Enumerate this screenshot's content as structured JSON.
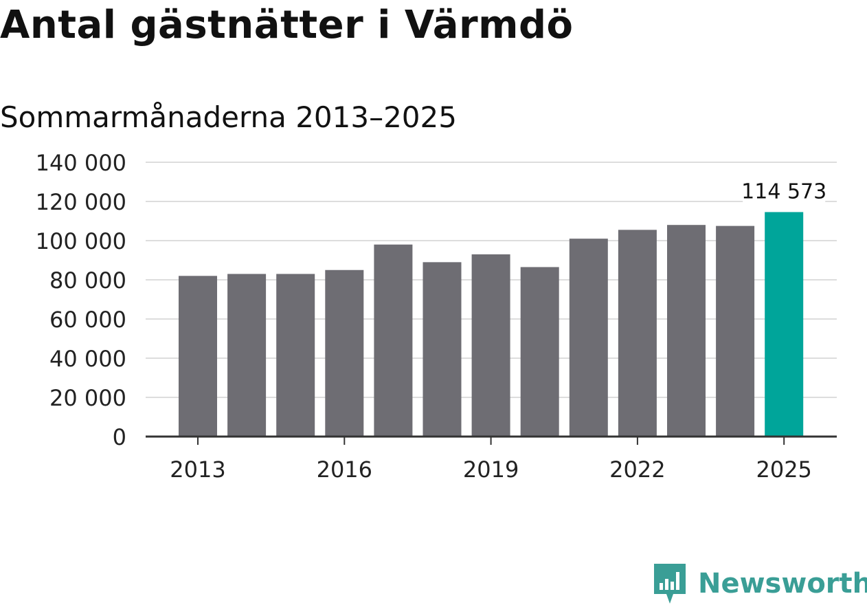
{
  "title": "Antal gästnätter i Värmdö",
  "subtitle": "Sommarmånaderna 2013–2025",
  "brand": {
    "name": "Newsworthy",
    "logo_icon": "newsworthy-logo-icon",
    "color": "#3a9e96"
  },
  "chart_data": {
    "type": "bar",
    "title": "Antal gästnätter i Värmdö",
    "subtitle": "Sommarmånaderna 2013–2025",
    "xlabel": "",
    "ylabel": "",
    "categories": [
      "2013",
      "2014",
      "2015",
      "2016",
      "2017",
      "2018",
      "2019",
      "2020",
      "2021",
      "2022",
      "2023",
      "2024",
      "2025"
    ],
    "values": [
      82000,
      83000,
      83000,
      85000,
      98000,
      89000,
      93000,
      86500,
      101000,
      105500,
      108000,
      107500,
      114573
    ],
    "ylim": [
      0,
      140000
    ],
    "yticks": [
      {
        "value": 0,
        "label": "0"
      },
      {
        "value": 20000,
        "label": "20 000"
      },
      {
        "value": 40000,
        "label": "40 000"
      },
      {
        "value": 60000,
        "label": "60 000"
      },
      {
        "value": 80000,
        "label": "80 000"
      },
      {
        "value": 100000,
        "label": "100 000"
      },
      {
        "value": 120000,
        "label": "120 000"
      },
      {
        "value": 140000,
        "label": "140 000"
      }
    ],
    "xticks": [
      "2013",
      "2016",
      "2019",
      "2022",
      "2025"
    ],
    "highlight": {
      "category": "2025",
      "label": "114 573"
    },
    "grid": true,
    "legend": "none",
    "colors": {
      "bar": "#6e6d73",
      "highlight": "#00a59a",
      "grid": "#dddddd",
      "axis": "#333333"
    }
  }
}
